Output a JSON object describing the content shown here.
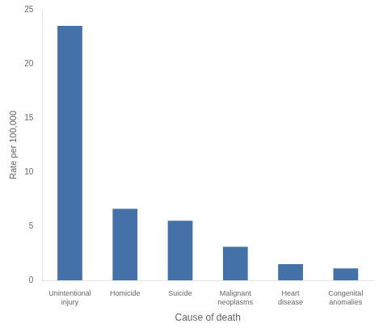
{
  "chart_data": {
    "type": "bar",
    "categories": [
      "Unintentional\ninjury",
      "Homicide",
      "Suicide",
      "Malignant\nneoplasms",
      "Heart\ndisease",
      "Congenital\nanomalies"
    ],
    "values": [
      23.5,
      6.6,
      5.5,
      3.1,
      1.5,
      1.1
    ],
    "color": "#4472a8",
    "xlabel": "Cause of death",
    "ylabel": "Rate per 100,000",
    "ylim": [
      0,
      25
    ],
    "yticks": [
      0,
      5,
      10,
      15,
      20,
      25
    ],
    "grid": false
  }
}
